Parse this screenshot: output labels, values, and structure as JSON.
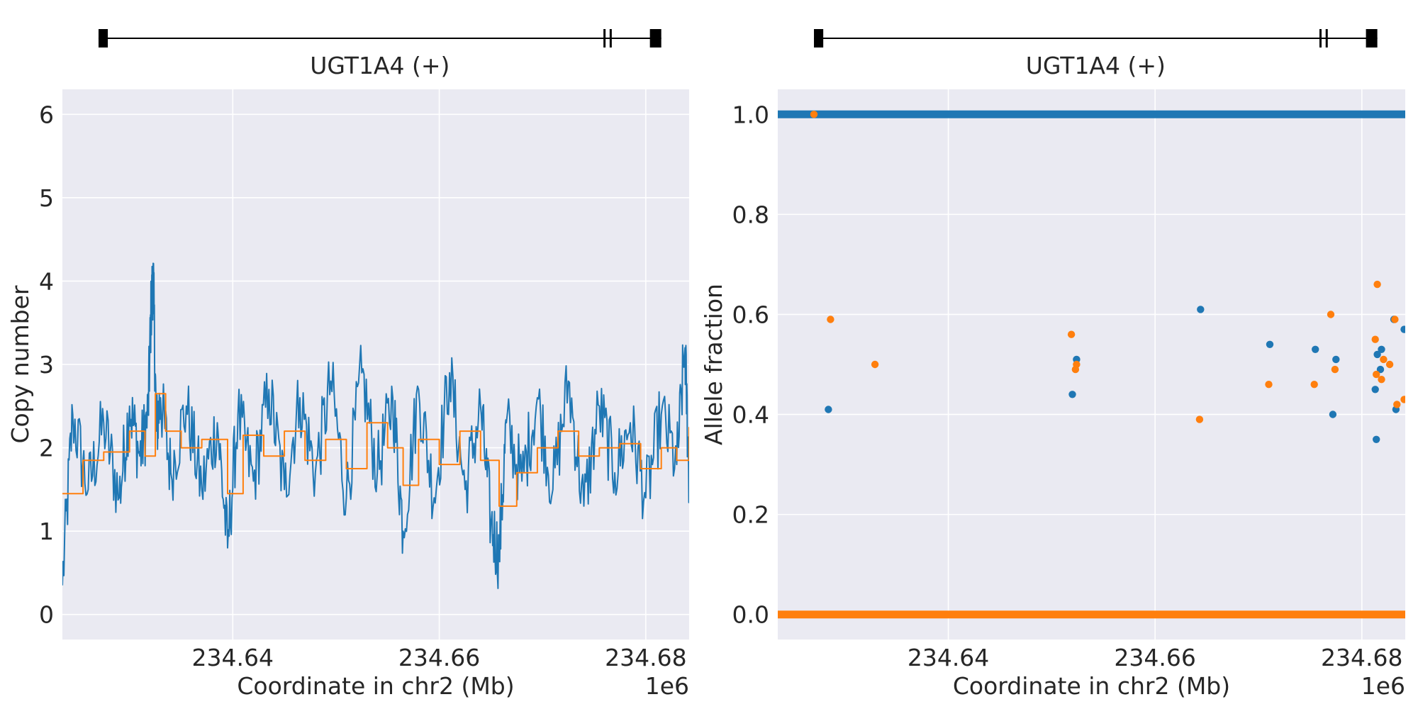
{
  "chart_data": [
    {
      "type": "line",
      "gene_track": {
        "label": "UGT1A4 (+)",
        "start": 234627000,
        "end": 234681500,
        "exons": [
          {
            "start": 234627000,
            "end": 234627900
          },
          {
            "start": 234675900,
            "end": 234676100
          },
          {
            "start": 234676500,
            "end": 234676700
          },
          {
            "start": 234680400,
            "end": 234681500
          }
        ]
      },
      "xlabel": "Coordinate in chr2 (Mb)",
      "ylabel": "Copy number",
      "x_offset_label": "1e6",
      "xlim": [
        234623500,
        234684200
      ],
      "ylim": [
        -0.3,
        6.3
      ],
      "x_ticks": [
        {
          "value": 234640000,
          "label": "234.64"
        },
        {
          "value": 234660000,
          "label": "234.66"
        },
        {
          "value": 234680000,
          "label": "234.68"
        }
      ],
      "y_ticks": [
        {
          "value": 0,
          "label": "0"
        },
        {
          "value": 1,
          "label": "1"
        },
        {
          "value": 2,
          "label": "2"
        },
        {
          "value": 3,
          "label": "3"
        },
        {
          "value": 4,
          "label": "4"
        },
        {
          "value": 5,
          "label": "5"
        },
        {
          "value": 6,
          "label": "6"
        }
      ],
      "grid": true,
      "series": [
        {
          "color": "#1f77b4",
          "x": [
            234623500,
            234624500,
            234626000,
            234627500,
            234629000,
            234630000,
            234631000,
            234631800,
            234632100,
            234632300,
            234632600,
            234633000,
            234634000,
            234635500,
            234637000,
            234638500,
            234639500,
            234640500,
            234642000,
            234643500,
            234645000,
            234646500,
            234648000,
            234649500,
            234651000,
            234652500,
            234654000,
            234655500,
            234656500,
            234658000,
            234659500,
            234661000,
            234662500,
            234664000,
            234665000,
            234665800,
            234666500,
            234668000,
            234669500,
            234671000,
            234672500,
            234674000,
            234675500,
            234677000,
            234678500,
            234680000,
            234681500,
            234683000,
            234683800,
            234684200
          ],
          "values": [
            0.35,
            2.4,
            1.5,
            2.3,
            1.4,
            2.5,
            1.9,
            2.4,
            3.7,
            4.05,
            2.2,
            2.6,
            1.7,
            2.5,
            1.5,
            2.3,
            0.8,
            2.4,
            1.6,
            2.7,
            1.5,
            2.6,
            1.7,
            2.8,
            1.4,
            2.9,
            1.7,
            2.6,
            1.0,
            2.7,
            1.4,
            2.9,
            1.5,
            2.5,
            1.1,
            0.7,
            2.3,
            1.6,
            2.6,
            1.5,
            2.8,
            1.3,
            2.5,
            1.7,
            2.3,
            1.4,
            2.4,
            1.8,
            3.2,
            1.6
          ]
        },
        {
          "color": "#ff7f0e",
          "x": [
            234623500,
            234625500,
            234627500,
            234630000,
            234631500,
            234632500,
            234633500,
            234635000,
            234637000,
            234639500,
            234641000,
            234643000,
            234645000,
            234647000,
            234649000,
            234651000,
            234653000,
            234655000,
            234656500,
            234658000,
            234660000,
            234662000,
            234664000,
            234665800,
            234667500,
            234669500,
            234671500,
            234673500,
            234675500,
            234677500,
            234679500,
            234681500,
            234683000,
            234684200
          ],
          "values": [
            1.45,
            1.85,
            1.95,
            2.2,
            1.9,
            2.65,
            2.2,
            2.0,
            2.1,
            1.45,
            2.15,
            1.9,
            2.2,
            1.85,
            2.1,
            1.75,
            2.3,
            2.0,
            1.55,
            2.1,
            1.8,
            2.2,
            1.85,
            1.3,
            1.7,
            2.0,
            2.2,
            1.9,
            2.0,
            2.05,
            1.75,
            2.0,
            1.85,
            2.25
          ]
        }
      ]
    },
    {
      "type": "scatter",
      "gene_track": {
        "label": "UGT1A4 (+)",
        "start": 234627000,
        "end": 234681500,
        "exons": [
          {
            "start": 234627000,
            "end": 234627900
          },
          {
            "start": 234675900,
            "end": 234676100
          },
          {
            "start": 234676500,
            "end": 234676700
          },
          {
            "start": 234680400,
            "end": 234681500
          }
        ]
      },
      "xlabel": "Coordinate in chr2 (Mb)",
      "ylabel": "Allele fraction",
      "x_offset_label": "1e6",
      "xlim": [
        234623500,
        234684200
      ],
      "ylim": [
        -0.05,
        1.05
      ],
      "x_ticks": [
        {
          "value": 234640000,
          "label": "234.64"
        },
        {
          "value": 234660000,
          "label": "234.66"
        },
        {
          "value": 234680000,
          "label": "234.68"
        }
      ],
      "y_ticks": [
        {
          "value": 0.0,
          "label": "0.0"
        },
        {
          "value": 0.2,
          "label": "0.2"
        },
        {
          "value": 0.4,
          "label": "0.4"
        },
        {
          "value": 0.6,
          "label": "0.6"
        },
        {
          "value": 0.8,
          "label": "0.8"
        },
        {
          "value": 1.0,
          "label": "1.0"
        }
      ],
      "grid": true,
      "bands": [
        {
          "color": "#1f77b4",
          "y": 1.0,
          "x_range": [
            234623500,
            234684200
          ]
        },
        {
          "color": "#ff7f0e",
          "y": 0.0,
          "x_range": [
            234623500,
            234684200
          ]
        }
      ],
      "series": [
        {
          "color": "#1f77b4",
          "points": [
            [
              234628400,
              0.41
            ],
            [
              234652000,
              0.44
            ],
            [
              234652400,
              0.51
            ],
            [
              234664400,
              0.61
            ],
            [
              234671100,
              0.54
            ],
            [
              234675500,
              0.53
            ],
            [
              234677200,
              0.4
            ],
            [
              234677500,
              0.51
            ],
            [
              234681300,
              0.45
            ],
            [
              234681500,
              0.52
            ],
            [
              234681900,
              0.53
            ],
            [
              234681400,
              0.35
            ],
            [
              234681800,
              0.49
            ],
            [
              234683100,
              0.59
            ],
            [
              234683300,
              0.41
            ],
            [
              234684100,
              0.57
            ]
          ]
        },
        {
          "color": "#ff7f0e",
          "points": [
            [
              234627000,
              1.0
            ],
            [
              234628600,
              0.59
            ],
            [
              234632900,
              0.5
            ],
            [
              234651900,
              0.56
            ],
            [
              234652400,
              0.5
            ],
            [
              234652300,
              0.49
            ],
            [
              234664300,
              0.39
            ],
            [
              234671000,
              0.46
            ],
            [
              234675400,
              0.46
            ],
            [
              234677000,
              0.6
            ],
            [
              234677400,
              0.49
            ],
            [
              234681300,
              0.55
            ],
            [
              234681500,
              0.66
            ],
            [
              234681400,
              0.48
            ],
            [
              234681900,
              0.47
            ],
            [
              234682100,
              0.51
            ],
            [
              234682700,
              0.5
            ],
            [
              234683200,
              0.59
            ],
            [
              234683400,
              0.42
            ],
            [
              234684100,
              0.43
            ]
          ]
        }
      ]
    }
  ]
}
